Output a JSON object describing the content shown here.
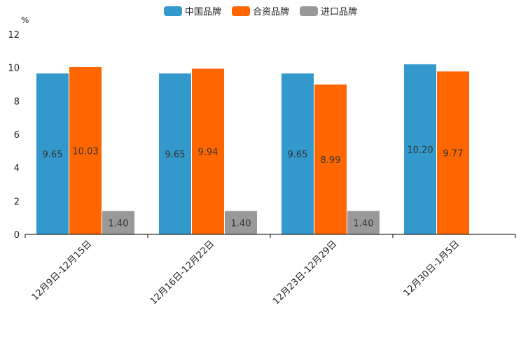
{
  "chart_data": {
    "type": "bar",
    "title": "",
    "unit": "%",
    "xlabel": "",
    "ylabel": "%",
    "ylim": [
      0,
      12
    ],
    "yticks": [
      0,
      2,
      4,
      6,
      8,
      10,
      12
    ],
    "categories": [
      "12月9日-12月15日",
      "12月16日-12月22日",
      "12月23日-12月29日",
      "12月30日-1月5日"
    ],
    "series": [
      {
        "name": "中国品牌",
        "color": "#3399cc",
        "values": [
          9.65,
          9.65,
          9.65,
          10.2
        ],
        "labels": [
          "9.65",
          "9.65",
          "9.65",
          "10.20"
        ]
      },
      {
        "name": "合资品牌",
        "color": "#ff6600",
        "values": [
          10.03,
          9.94,
          8.99,
          9.77
        ],
        "labels": [
          "10.03",
          "9.94",
          "8.99",
          "9.77"
        ]
      },
      {
        "name": "进口品牌",
        "color": "#999999",
        "values": [
          1.4,
          1.4,
          1.4,
          null
        ],
        "labels": [
          "1.40",
          "1.40",
          "1.40",
          null
        ]
      }
    ],
    "legend": "top-center",
    "grid": false
  }
}
